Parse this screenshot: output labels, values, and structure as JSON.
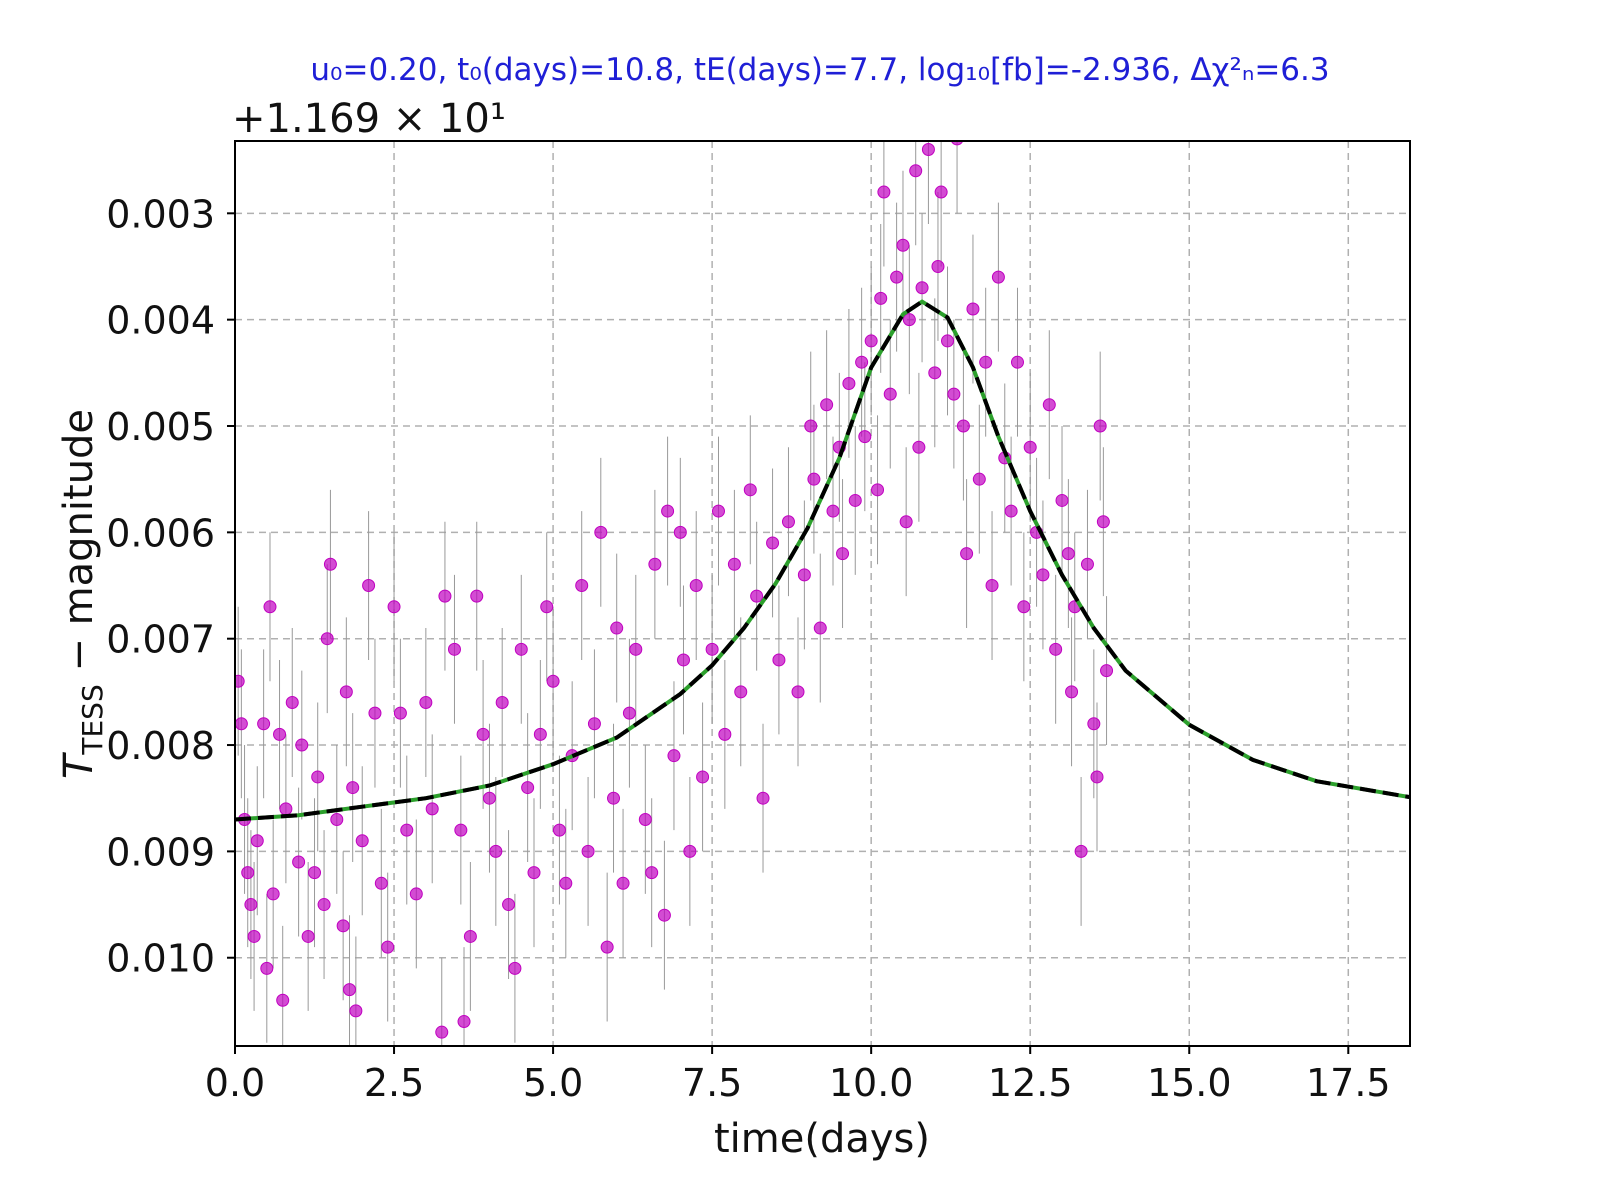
{
  "chart_data": {
    "type": "scatter",
    "title": "u₀=0.20,  t₀(days)=10.8,  tE(days)=7.7,  log₁₀[fb]=-2.936,  Δχ²ₙ=6.3",
    "offset_text": "+1.169 × 10¹",
    "x_label": "time(days)",
    "y_label": {
      "symbol": "T",
      "subscript": "TESS",
      "rest": " − magnitude"
    },
    "xlim": [
      0,
      18.47
    ],
    "ylim": [
      0.01083,
      0.00232
    ],
    "xticks": [
      {
        "value": 0,
        "label": "0.0"
      },
      2.5,
      {
        "value": 5,
        "label": "5.0"
      },
      7.5,
      {
        "value": 10,
        "label": "10.0"
      },
      12.5,
      {
        "value": 15,
        "label": "15.0"
      },
      17.5
    ],
    "yticks": [
      0.003,
      0.004,
      0.005,
      0.006,
      0.007,
      0.008,
      0.009,
      {
        "value": 0.01,
        "label": "0.010"
      }
    ],
    "grid": true,
    "points": {
      "color": "#c000c0",
      "error_color": "#999999",
      "yerr": 0.0007,
      "x": [
        0.05,
        0.1,
        0.15,
        0.2,
        0.25,
        0.3,
        0.35,
        0.45,
        0.5,
        0.55,
        0.6,
        0.7,
        0.75,
        0.8,
        0.9,
        1.0,
        1.05,
        1.15,
        1.25,
        1.3,
        1.4,
        1.45,
        1.5,
        1.6,
        1.7,
        1.75,
        1.8,
        1.85,
        1.9,
        2.0,
        2.1,
        2.2,
        2.3,
        2.4,
        2.5,
        2.6,
        2.7,
        2.85,
        3.0,
        3.1,
        3.25,
        3.3,
        3.45,
        3.55,
        3.6,
        3.7,
        3.8,
        3.9,
        4.0,
        4.1,
        4.2,
        4.3,
        4.4,
        4.5,
        4.6,
        4.7,
        4.8,
        4.9,
        5.0,
        5.1,
        5.2,
        5.3,
        5.45,
        5.55,
        5.65,
        5.75,
        5.85,
        5.95,
        6.0,
        6.1,
        6.2,
        6.3,
        6.45,
        6.55,
        6.6,
        6.75,
        6.8,
        6.9,
        7.0,
        7.05,
        7.15,
        7.25,
        7.35,
        7.5,
        7.6,
        7.7,
        7.85,
        7.95,
        8.1,
        8.2,
        8.3,
        8.45,
        8.55,
        8.7,
        8.85,
        8.95,
        9.05,
        9.1,
        9.2,
        9.3,
        9.4,
        9.5,
        9.55,
        9.65,
        9.75,
        9.85,
        9.9,
        10.0,
        10.1,
        10.15,
        10.2,
        10.3,
        10.4,
        10.5,
        10.55,
        10.6,
        10.7,
        10.75,
        10.8,
        10.9,
        11.0,
        11.05,
        11.1,
        11.2,
        11.3,
        11.35,
        11.45,
        11.5,
        11.6,
        11.7,
        11.8,
        11.9,
        12.0,
        12.1,
        12.2,
        12.3,
        12.4,
        12.5,
        12.6,
        12.7,
        12.8,
        12.9,
        13.0,
        13.1,
        13.15,
        13.2,
        13.3,
        13.4,
        13.5,
        13.55,
        13.6,
        13.65,
        13.7
      ],
      "y": [
        0.0074,
        0.0078,
        0.0087,
        0.0092,
        0.0095,
        0.0098,
        0.0089,
        0.0078,
        0.0101,
        0.0067,
        0.0094,
        0.0079,
        0.0104,
        0.0086,
        0.0076,
        0.0091,
        0.008,
        0.0098,
        0.0092,
        0.0083,
        0.0095,
        0.007,
        0.0063,
        0.0087,
        0.0097,
        0.0075,
        0.0103,
        0.0084,
        0.0105,
        0.0089,
        0.0065,
        0.0077,
        0.0093,
        0.0099,
        0.0067,
        0.0077,
        0.0088,
        0.0094,
        0.0076,
        0.0086,
        0.0107,
        0.0066,
        0.0071,
        0.0088,
        0.0106,
        0.0098,
        0.0066,
        0.0079,
        0.0085,
        0.009,
        0.0076,
        0.0095,
        0.0101,
        0.0071,
        0.0084,
        0.0092,
        0.0079,
        0.0067,
        0.0074,
        0.0088,
        0.0093,
        0.0081,
        0.0065,
        0.009,
        0.0078,
        0.006,
        0.0099,
        0.0085,
        0.0069,
        0.0093,
        0.0077,
        0.0071,
        0.0087,
        0.0092,
        0.0063,
        0.0096,
        0.0058,
        0.0081,
        0.006,
        0.0072,
        0.009,
        0.0065,
        0.0083,
        0.0071,
        0.0058,
        0.0079,
        0.0063,
        0.0075,
        0.0056,
        0.0066,
        0.0085,
        0.0061,
        0.0072,
        0.0059,
        0.0075,
        0.0064,
        0.005,
        0.0055,
        0.0069,
        0.0048,
        0.0058,
        0.0052,
        0.0062,
        0.0046,
        0.0057,
        0.0044,
        0.0051,
        0.0042,
        0.0056,
        0.0038,
        0.0028,
        0.0047,
        0.0036,
        0.0033,
        0.0059,
        0.004,
        0.0026,
        0.0052,
        0.0037,
        0.0024,
        0.0045,
        0.0035,
        0.0028,
        0.0042,
        0.0047,
        0.0023,
        0.005,
        0.0062,
        0.0039,
        0.0055,
        0.0044,
        0.0065,
        0.0036,
        0.0053,
        0.0058,
        0.0044,
        0.0067,
        0.0052,
        0.006,
        0.0064,
        0.0048,
        0.0071,
        0.0057,
        0.0062,
        0.0075,
        0.0067,
        0.009,
        0.0063,
        0.0078,
        0.0083,
        0.005,
        0.0059,
        0.0073
      ]
    },
    "model": {
      "type": "line",
      "color": "#000000",
      "under_color": "#2ca02c",
      "x": [
        0,
        1,
        2,
        3,
        4,
        5,
        6,
        7,
        7.5,
        8,
        8.5,
        9,
        9.5,
        10,
        10.5,
        10.8,
        11.2,
        11.6,
        12,
        12.5,
        13,
        13.5,
        14,
        15,
        16,
        17,
        18.47
      ],
      "y": [
        0.0087,
        0.00866,
        0.00858,
        0.0085,
        0.00838,
        0.00818,
        0.00793,
        0.00752,
        0.00725,
        0.0069,
        0.00648,
        0.00596,
        0.0053,
        0.00445,
        0.00395,
        0.00383,
        0.00398,
        0.00445,
        0.0051,
        0.0058,
        0.0064,
        0.0069,
        0.0073,
        0.00781,
        0.00814,
        0.00834,
        0.00849
      ]
    }
  }
}
